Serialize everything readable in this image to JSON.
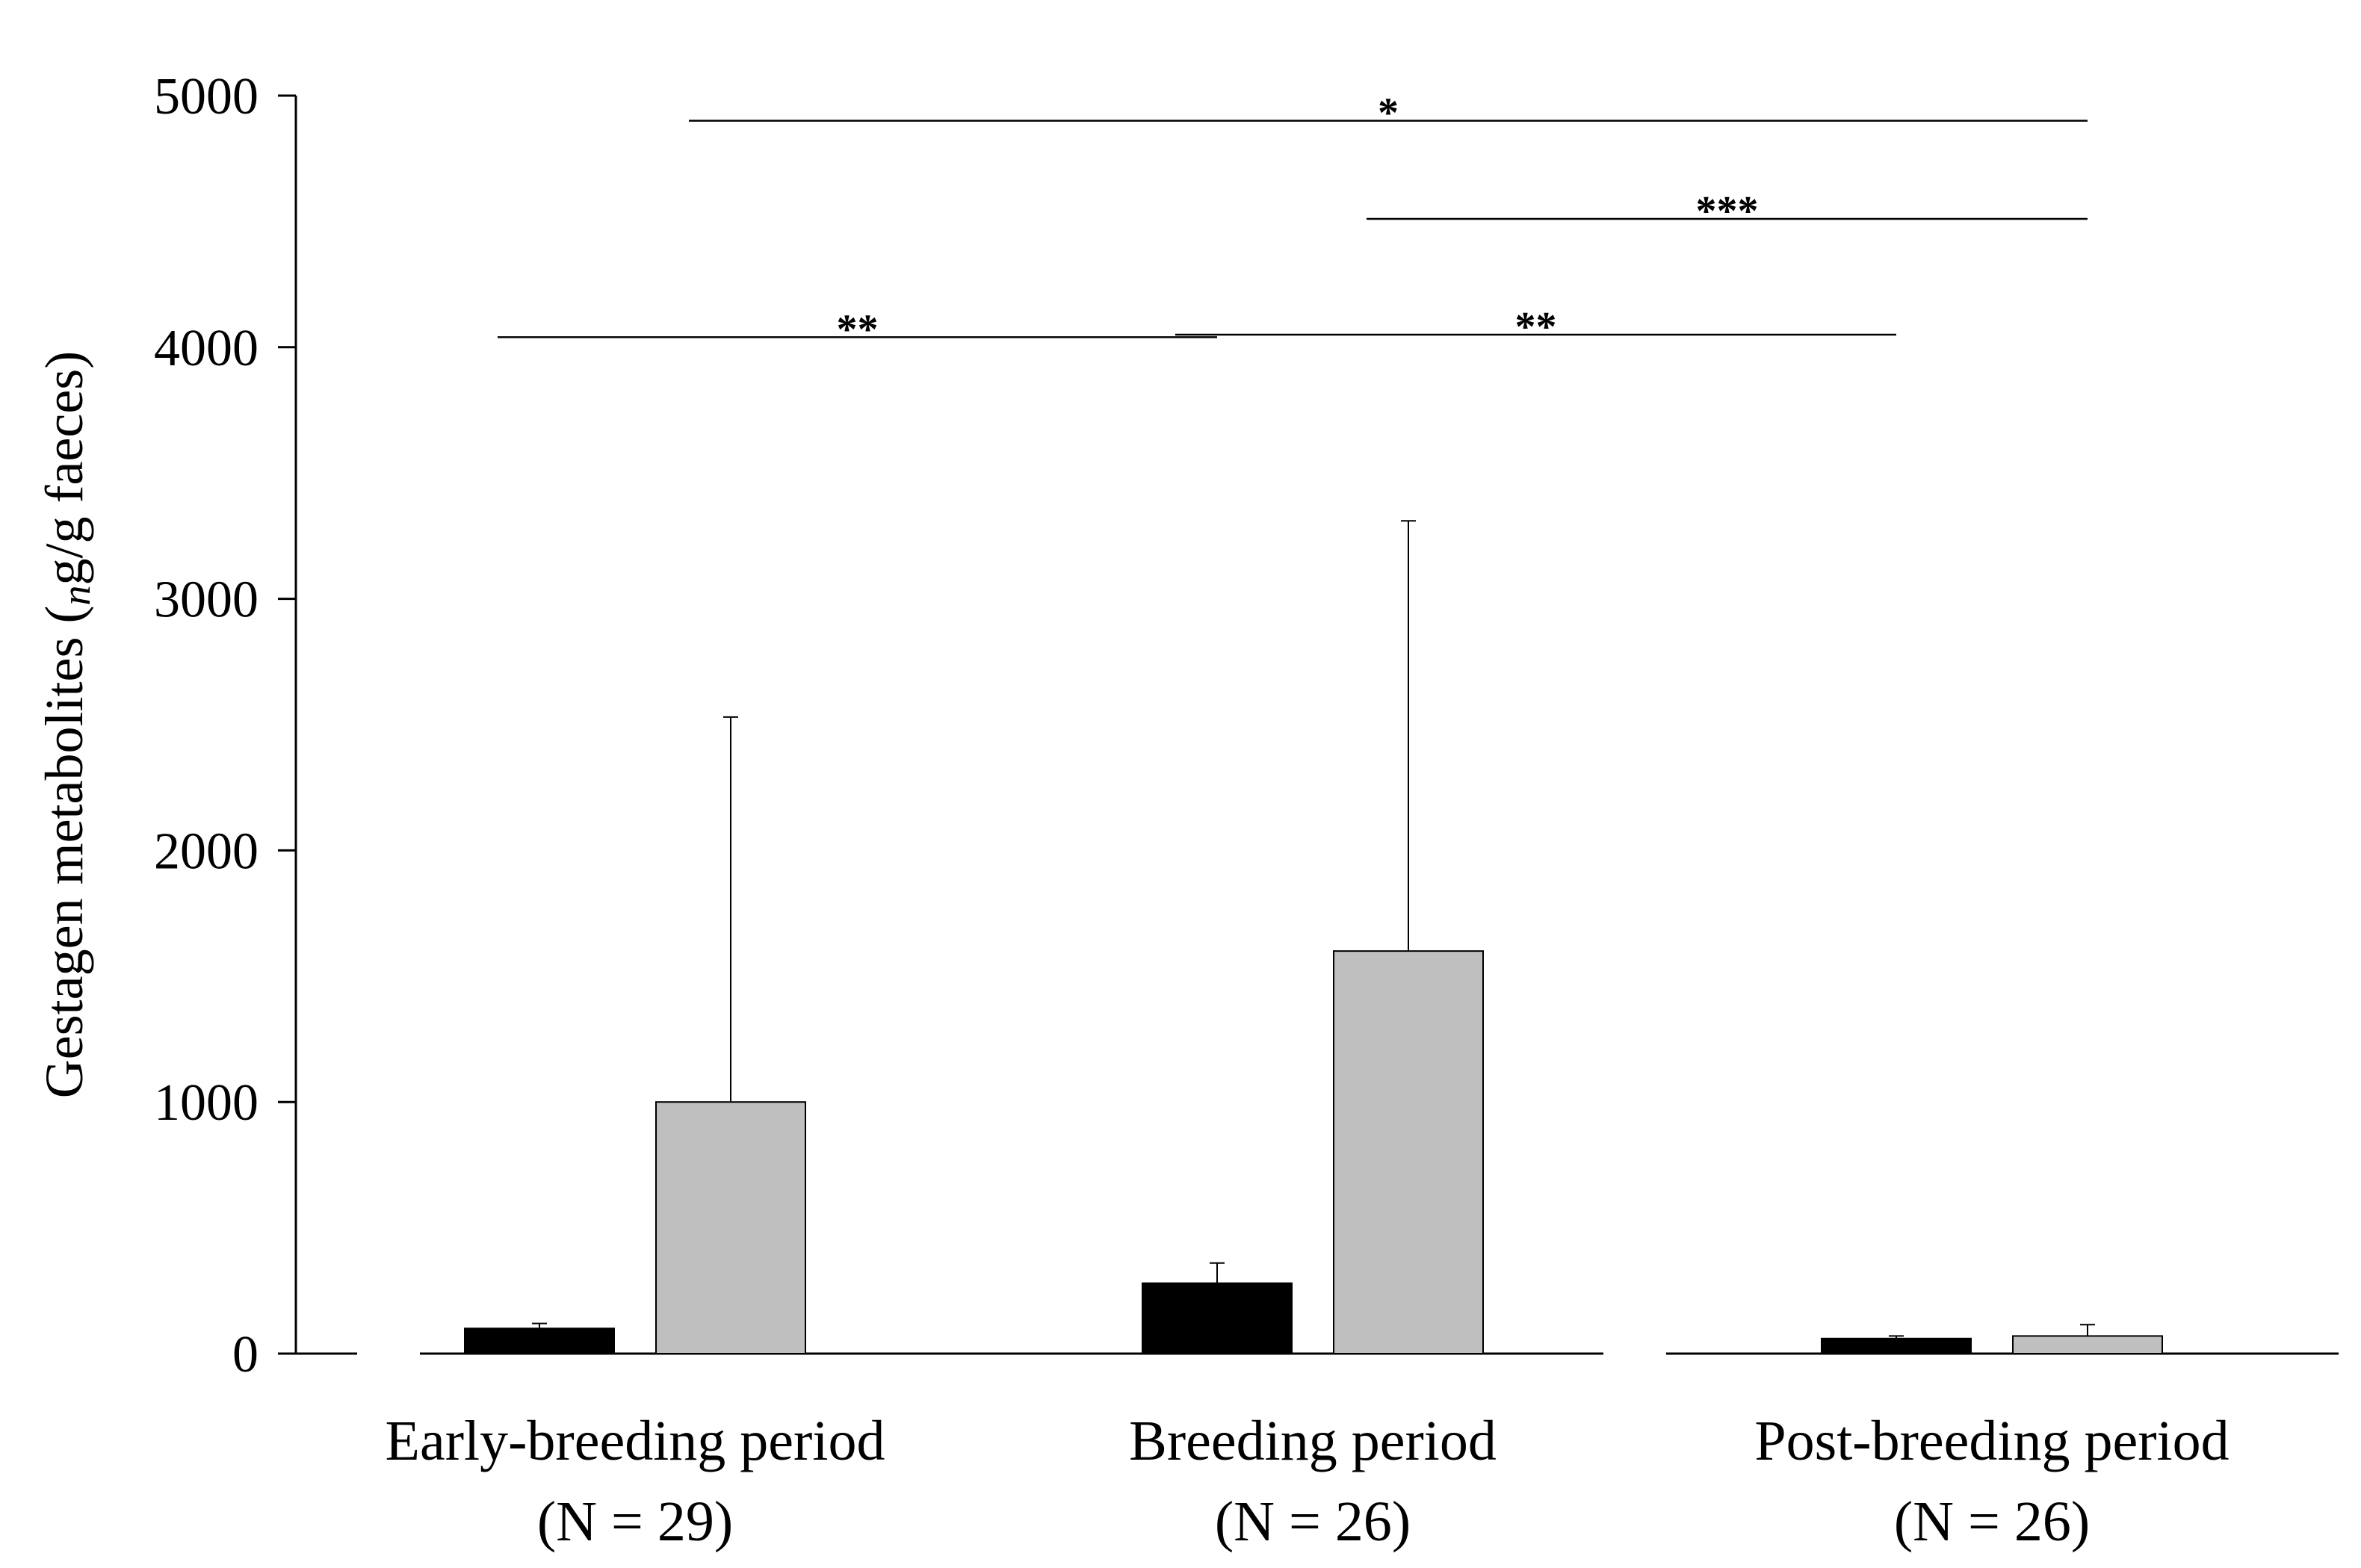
{
  "chart_data": {
    "type": "bar",
    "ylabel": "Gestagen metabolites (ng/g faeces)",
    "ylabel_parts": [
      "Gestagen metabolites (",
      "n",
      "g/g faeces)"
    ],
    "ylim": [
      0,
      5000
    ],
    "yticks": [
      0,
      1000,
      2000,
      3000,
      4000,
      5000
    ],
    "categories": [
      "Early-breeding period",
      "Breeding period",
      "Post-breeding period"
    ],
    "category_n": [
      "(N = 29)",
      "(N = 26)",
      "(N = 26)"
    ],
    "series": [
      {
        "color": "#000000",
        "values": [
          100,
          280,
          60
        ],
        "error": [
          20,
          80,
          10
        ]
      },
      {
        "color": "#bfbfbf",
        "values": [
          1000,
          1600,
          70
        ],
        "error": [
          1530,
          1710,
          45
        ]
      }
    ],
    "significance": [
      {
        "label": "*",
        "from": [
          0,
          1
        ],
        "to": [
          2,
          1
        ],
        "y": 4900
      },
      {
        "label": "***",
        "from": [
          1,
          1
        ],
        "to": [
          2,
          1
        ],
        "y": 4510
      },
      {
        "label": "**",
        "from": [
          0,
          0
        ],
        "to": [
          1,
          0
        ],
        "y": 4040
      },
      {
        "label": "**",
        "from": [
          1,
          0
        ],
        "to": [
          2,
          0
        ],
        "y": 4050
      }
    ]
  }
}
